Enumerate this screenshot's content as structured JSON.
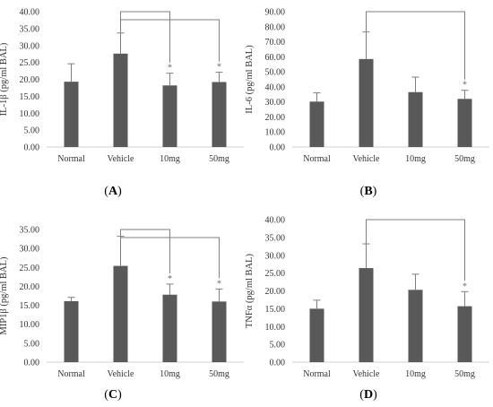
{
  "chart_data": [
    {
      "type": "bar",
      "panel_label": "A",
      "ylabel": "IL-1β (pg/ml BAL)",
      "categories": [
        "Normal",
        "Vehicle",
        "10mg",
        "50mg"
      ],
      "values": [
        19.3,
        27.6,
        18.2,
        19.2
      ],
      "errors": [
        5.3,
        6.1,
        3.6,
        2.9
      ],
      "significance": [
        "",
        "",
        "*",
        "*"
      ],
      "comparisons": [
        [
          1,
          2
        ],
        [
          1,
          3
        ]
      ],
      "yticks": [
        "0.00",
        "5.00",
        "10.00",
        "15.00",
        "20.00",
        "25.00",
        "30.00",
        "35.00",
        "40.00"
      ],
      "ylim": [
        0,
        40
      ],
      "grid": false,
      "bar_color": "#595959"
    },
    {
      "type": "bar",
      "panel_label": "B",
      "ylabel": "IL-6 (pg/ml BAL)",
      "categories": [
        "Normal",
        "Vehicle",
        "10mg",
        "50mg"
      ],
      "values": [
        30.2,
        58.5,
        36.5,
        32.0
      ],
      "errors": [
        5.8,
        18.0,
        10.0,
        5.7
      ],
      "significance": [
        "",
        "",
        "",
        "*"
      ],
      "comparisons": [
        [
          1,
          3
        ]
      ],
      "yticks": [
        "0.00",
        "10.00",
        "20.00",
        "30.00",
        "40.00",
        "50.00",
        "60.00",
        "70.00",
        "80.00",
        "90.00"
      ],
      "ylim": [
        0,
        90
      ],
      "grid": false,
      "bar_color": "#595959"
    },
    {
      "type": "bar",
      "panel_label": "C",
      "ylabel": "MIP1β (pg/ml BAL)",
      "categories": [
        "Normal",
        "Vehicle",
        "10mg",
        "50mg"
      ],
      "values": [
        16.1,
        25.4,
        17.8,
        16.0
      ],
      "errors": [
        1.0,
        7.8,
        2.8,
        3.3
      ],
      "significance": [
        "",
        "",
        "*",
        "*"
      ],
      "comparisons": [
        [
          1,
          2
        ],
        [
          1,
          3
        ]
      ],
      "yticks": [
        "0.00",
        "5.00",
        "10.00",
        "15.00",
        "20.00",
        "25.00",
        "30.00",
        "35.00"
      ],
      "ylim": [
        0,
        35
      ],
      "grid": false,
      "bar_color": "#595959"
    },
    {
      "type": "bar",
      "panel_label": "D",
      "ylabel": "TNFα (pg/ml BAL)",
      "categories": [
        "Normal",
        "Vehicle",
        "10mg",
        "50mg"
      ],
      "values": [
        15.0,
        26.4,
        20.3,
        15.7
      ],
      "errors": [
        2.4,
        6.8,
        4.4,
        4.1
      ],
      "significance": [
        "",
        "",
        "",
        "*"
      ],
      "comparisons": [
        [
          1,
          3
        ]
      ],
      "yticks": [
        "0.00",
        "5.00",
        "10.00",
        "15.00",
        "20.00",
        "25.00",
        "30.00",
        "35.00",
        "40.00"
      ],
      "ylim": [
        0,
        40
      ],
      "grid": false,
      "bar_color": "#595959"
    }
  ]
}
